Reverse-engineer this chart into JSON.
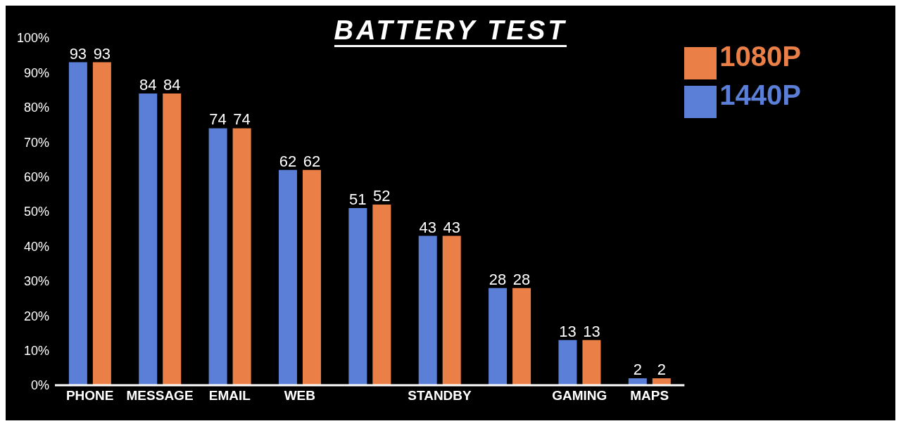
{
  "chart_data": {
    "type": "bar",
    "title": "BATTERY TEST",
    "categories": [
      "PHONE",
      "MESSAGE",
      "EMAIL",
      "WEB",
      null,
      "STANDBY",
      null,
      "GAMING",
      "MAPS"
    ],
    "series": [
      {
        "name": "1440P",
        "color": "#5b7fd6",
        "values": [
          93,
          84,
          74,
          62,
          51,
          43,
          28,
          13,
          2
        ]
      },
      {
        "name": "1080P",
        "color": "#ea8048",
        "values": [
          93,
          84,
          74,
          62,
          52,
          43,
          28,
          13,
          2
        ]
      }
    ],
    "ylim": [
      0,
      100
    ],
    "yticks": [
      {
        "value": 0,
        "label": "0%"
      },
      {
        "value": 10,
        "label": "10%"
      },
      {
        "value": 20,
        "label": "20%"
      },
      {
        "value": 30,
        "label": "30%"
      },
      {
        "value": 40,
        "label": "40%"
      },
      {
        "value": 50,
        "label": "50%"
      },
      {
        "value": 60,
        "label": "60%"
      },
      {
        "value": 70,
        "label": "70%"
      },
      {
        "value": 80,
        "label": "80%"
      },
      {
        "value": 90,
        "label": "90%"
      },
      {
        "value": 100,
        "label": "100%"
      }
    ],
    "data_labels": true,
    "grid": false,
    "legend": "top right"
  }
}
